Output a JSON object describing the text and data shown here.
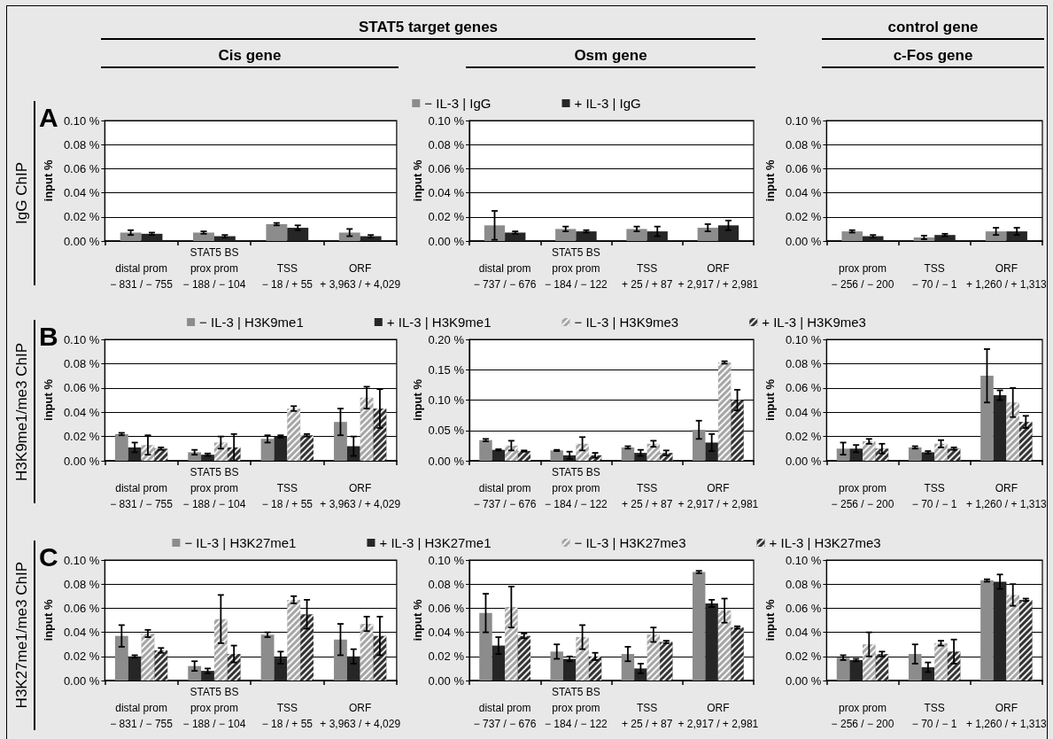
{
  "chart_data": [
    {
      "type": "bar",
      "title": "Cis gene",
      "annotations": [
        "STAT5  target  genes",
        "A",
        "IgG ChIP"
      ],
      "ylabel": "input %",
      "categories": [
        "distal prom\n− 831 / − 755",
        "STAT5 BS\nprox prom\n− 188 / − 104",
        "TSS\n− 18 / + 55",
        "ORF\n+ 3,963 / + 4,029"
      ],
      "ylim": [
        0,
        0.1
      ],
      "yticks": [
        {
          "value": 0,
          "label": "0.00 %"
        },
        {
          "value": 0.02,
          "label": "0.02 %"
        },
        {
          "value": 0.04,
          "label": "0.04 %"
        },
        {
          "value": 0.06,
          "label": "0.06 %"
        },
        {
          "value": 0.08,
          "label": "0.08 %"
        },
        {
          "value": 0.1,
          "label": "0.10 %"
        }
      ],
      "grid": "y",
      "series": [
        {
          "color": "#8c8c8c",
          "values": [
            0.007,
            0.007,
            0.014,
            0.007
          ],
          "errors": [
            0.002,
            0.001,
            0.001,
            0.003
          ]
        },
        {
          "color": "#262626",
          "values": [
            0.006,
            0.004,
            0.011,
            0.004
          ],
          "errors": [
            0.001,
            0.001,
            0.002,
            0.001
          ]
        }
      ]
    },
    {
      "type": "bar",
      "title": "Osm gene",
      "ylabel": "input %",
      "legend": "top",
      "categories": [
        "distal prom\n− 737 / − 676",
        "STAT5 BS\nprox prom\n− 184 / − 122",
        "TSS\n+ 25 / + 87",
        "ORF\n+ 2,917 / + 2,981"
      ],
      "ylim": [
        0,
        0.1
      ],
      "yticks": [
        {
          "value": 0,
          "label": "0.00 %"
        },
        {
          "value": 0.02,
          "label": "0.02 %"
        },
        {
          "value": 0.04,
          "label": "0.04 %"
        },
        {
          "value": 0.06,
          "label": "0.06 %"
        },
        {
          "value": 0.08,
          "label": "0.08 %"
        },
        {
          "value": 0.1,
          "label": "0.10 %"
        }
      ],
      "grid": "y",
      "series": [
        {
          "name": "− IL-3 | IgG",
          "color": "#8c8c8c",
          "values": [
            0.013,
            0.01,
            0.01,
            0.011
          ],
          "errors": [
            0.012,
            0.002,
            0.002,
            0.003
          ]
        },
        {
          "name": "+ IL-3 | IgG",
          "color": "#262626",
          "values": [
            0.007,
            0.008,
            0.008,
            0.013
          ],
          "errors": [
            0.001,
            0.001,
            0.004,
            0.004
          ]
        }
      ]
    },
    {
      "type": "bar",
      "title": "c-Fos gene",
      "annotations": [
        "control  gene"
      ],
      "ylabel": "input %",
      "categories": [
        "prox prom\n− 256 / − 200",
        "TSS\n− 70 / − 1",
        "ORF\n+ 1,260 / + 1,313"
      ],
      "ylim": [
        0,
        0.1
      ],
      "yticks": [
        {
          "value": 0,
          "label": "0.00 %"
        },
        {
          "value": 0.02,
          "label": "0.02 %"
        },
        {
          "value": 0.04,
          "label": "0.04 %"
        },
        {
          "value": 0.06,
          "label": "0.06 %"
        },
        {
          "value": 0.08,
          "label": "0.08 %"
        },
        {
          "value": 0.1,
          "label": "0.10 %"
        }
      ],
      "grid": "y",
      "series": [
        {
          "color": "#8c8c8c",
          "values": [
            0.008,
            0.003,
            0.008
          ],
          "errors": [
            0.001,
            0.0015,
            0.003
          ]
        },
        {
          "color": "#262626",
          "values": [
            0.004,
            0.005,
            0.008
          ],
          "errors": [
            0.001,
            0.001,
            0.003
          ]
        }
      ]
    },
    {
      "type": "bar",
      "annotations": [
        "B",
        "H3K9me1/me3 ChIP"
      ],
      "ylabel": "input %",
      "categories": [
        "distal prom\n− 831 / − 755",
        "STAT5 BS\nprox prom\n− 188 / − 104",
        "TSS\n− 18 / + 55",
        "ORF\n+ 3,963 / + 4,029"
      ],
      "ylim": [
        0,
        0.1
      ],
      "yticks": [
        {
          "value": 0,
          "label": "0.00 %"
        },
        {
          "value": 0.02,
          "label": "0.02 %"
        },
        {
          "value": 0.04,
          "label": "0.04 %"
        },
        {
          "value": 0.06,
          "label": "0.06 %"
        },
        {
          "value": 0.08,
          "label": "0.08 %"
        },
        {
          "value": 0.1,
          "label": "0.10 %"
        }
      ],
      "grid": "y",
      "series": [
        {
          "color": "#8c8c8c",
          "values": [
            0.022,
            0.007,
            0.018,
            0.032
          ],
          "errors": [
            0.001,
            0.002,
            0.003,
            0.011
          ]
        },
        {
          "color": "#262626",
          "values": [
            0.011,
            0.005,
            0.02,
            0.012
          ],
          "errors": [
            0.004,
            0.001,
            0.001,
            0.008
          ]
        },
        {
          "color": "#a6a6a6",
          "values": [
            0.013,
            0.015,
            0.043,
            0.052
          ],
          "errors": [
            0.008,
            0.005,
            0.002,
            0.009
          ]
        },
        {
          "color": "#333333",
          "values": [
            0.01,
            0.011,
            0.021,
            0.043
          ],
          "errors": [
            0.001,
            0.011,
            0.001,
            0.016
          ]
        }
      ]
    },
    {
      "type": "bar",
      "ylabel": "input %",
      "legend": "top",
      "categories": [
        "distal prom\n− 737 / − 676",
        "STAT5 BS\nprox prom\n− 184 / − 122",
        "TSS\n+ 25 / + 87",
        "ORF\n+ 2,917 / + 2,981"
      ],
      "ylim": [
        0,
        0.2
      ],
      "yticks": [
        {
          "value": 0,
          "label": "0.00 %"
        },
        {
          "value": 0.05,
          "label": "0.05 %"
        },
        {
          "value": 0.1,
          "label": "0.10 %"
        },
        {
          "value": 0.15,
          "label": "0.15 %"
        },
        {
          "value": 0.2,
          "label": "0.20 %"
        }
      ],
      "grid": "y",
      "series": [
        {
          "name": "− IL-3 | H3K9me1",
          "color": "#8c8c8c",
          "values": [
            0.034,
            0.017,
            0.022,
            0.051
          ],
          "errors": [
            0.002,
            0.001,
            0.002,
            0.015
          ]
        },
        {
          "name": "+ IL-3 | H3K9me1",
          "color": "#262626",
          "values": [
            0.018,
            0.009,
            0.013,
            0.03
          ],
          "errors": [
            0.001,
            0.006,
            0.005,
            0.014
          ]
        },
        {
          "name": "− IL-3 | H3K9me3",
          "color": "#a6a6a6",
          "values": [
            0.025,
            0.028,
            0.028,
            0.162
          ],
          "errors": [
            0.008,
            0.011,
            0.005,
            0.002
          ]
        },
        {
          "name": "+ IL-3 | H3K9me3",
          "color": "#333333",
          "values": [
            0.016,
            0.009,
            0.013,
            0.1
          ],
          "errors": [
            0.001,
            0.004,
            0.004,
            0.017
          ]
        }
      ]
    },
    {
      "type": "bar",
      "ylabel": "input %",
      "categories": [
        "prox prom\n− 256 / − 200",
        "TSS\n− 70 / − 1",
        "ORF\n+ 1,260 / + 1,313"
      ],
      "ylim": [
        0,
        0.1
      ],
      "yticks": [
        {
          "value": 0,
          "label": "0.00 %"
        },
        {
          "value": 0.02,
          "label": "0.02 %"
        },
        {
          "value": 0.04,
          "label": "0.04 %"
        },
        {
          "value": 0.06,
          "label": "0.06 %"
        },
        {
          "value": 0.08,
          "label": "0.08 %"
        },
        {
          "value": 0.1,
          "label": "0.10 %"
        }
      ],
      "grid": "y",
      "series": [
        {
          "color": "#8c8c8c",
          "values": [
            0.01,
            0.011,
            0.07
          ],
          "errors": [
            0.005,
            0.001,
            0.022
          ]
        },
        {
          "color": "#262626",
          "values": [
            0.01,
            0.007,
            0.054
          ],
          "errors": [
            0.003,
            0.001,
            0.004
          ]
        },
        {
          "color": "#a6a6a6",
          "values": [
            0.016,
            0.014,
            0.048
          ],
          "errors": [
            0.002,
            0.003,
            0.012
          ]
        },
        {
          "color": "#333333",
          "values": [
            0.01,
            0.01,
            0.032
          ],
          "errors": [
            0.004,
            0.001,
            0.005
          ]
        }
      ]
    },
    {
      "type": "bar",
      "annotations": [
        "C",
        "H3K27me1/me3 ChIP"
      ],
      "ylabel": "input %",
      "categories": [
        "distal prom\n− 831 / − 755",
        "STAT5 BS\nprox prom\n− 188 / − 104",
        "TSS\n− 18 / + 55",
        "ORF\n+ 3,963 / + 4,029"
      ],
      "ylim": [
        0,
        0.1
      ],
      "yticks": [
        {
          "value": 0,
          "label": "0.00 %"
        },
        {
          "value": 0.02,
          "label": "0.02 %"
        },
        {
          "value": 0.04,
          "label": "0.04 %"
        },
        {
          "value": 0.06,
          "label": "0.06 %"
        },
        {
          "value": 0.08,
          "label": "0.08 %"
        },
        {
          "value": 0.1,
          "label": "0.10 %"
        }
      ],
      "grid": "y",
      "series": [
        {
          "color": "#8c8c8c",
          "values": [
            0.037,
            0.012,
            0.038,
            0.034
          ],
          "errors": [
            0.009,
            0.004,
            0.002,
            0.013
          ]
        },
        {
          "color": "#262626",
          "values": [
            0.02,
            0.008,
            0.019,
            0.02
          ],
          "errors": [
            0.001,
            0.002,
            0.005,
            0.006
          ]
        },
        {
          "color": "#a6a6a6",
          "values": [
            0.039,
            0.051,
            0.067,
            0.047
          ],
          "errors": [
            0.003,
            0.02,
            0.003,
            0.006
          ]
        },
        {
          "color": "#333333",
          "values": [
            0.025,
            0.022,
            0.055,
            0.037
          ],
          "errors": [
            0.002,
            0.007,
            0.012,
            0.016
          ]
        }
      ]
    },
    {
      "type": "bar",
      "ylabel": "input %",
      "legend": "top",
      "categories": [
        "distal prom\n− 737 / − 676",
        "STAT5 BS\nprox prom\n− 184 / − 122",
        "TSS\n+ 25 / + 87",
        "ORF\n+ 2,917 / + 2,981"
      ],
      "ylim": [
        0,
        0.1
      ],
      "yticks": [
        {
          "value": 0,
          "label": "0.00 %"
        },
        {
          "value": 0.02,
          "label": "0.02 %"
        },
        {
          "value": 0.04,
          "label": "0.04 %"
        },
        {
          "value": 0.06,
          "label": "0.06 %"
        },
        {
          "value": 0.08,
          "label": "0.08 %"
        },
        {
          "value": 0.1,
          "label": "0.10 %"
        }
      ],
      "grid": "y",
      "series": [
        {
          "name": "− IL-3 | H3K27me1",
          "color": "#8c8c8c",
          "values": [
            0.056,
            0.024,
            0.022,
            0.09
          ],
          "errors": [
            0.016,
            0.006,
            0.006,
            0.001
          ]
        },
        {
          "name": "+ IL-3 | H3K27me1",
          "color": "#262626",
          "values": [
            0.029,
            0.018,
            0.01,
            0.064
          ],
          "errors": [
            0.007,
            0.002,
            0.004,
            0.003
          ]
        },
        {
          "name": "− IL-3 | H3K27me3",
          "color": "#a6a6a6",
          "values": [
            0.061,
            0.036,
            0.038,
            0.058
          ],
          "errors": [
            0.017,
            0.01,
            0.006,
            0.01
          ]
        },
        {
          "name": "+ IL-3 | H3K27me3",
          "color": "#333333",
          "values": [
            0.037,
            0.02,
            0.032,
            0.044
          ],
          "errors": [
            0.002,
            0.003,
            0.001,
            0.001
          ]
        }
      ]
    },
    {
      "type": "bar",
      "ylabel": "input %",
      "categories": [
        "prox prom\n− 256 / − 200",
        "TSS\n− 70 / − 1",
        "ORF\n+ 1,260 / + 1,313"
      ],
      "ylim": [
        0,
        0.1
      ],
      "yticks": [
        {
          "value": 0,
          "label": "0.00 %"
        },
        {
          "value": 0.02,
          "label": "0.02 %"
        },
        {
          "value": 0.04,
          "label": "0.04 %"
        },
        {
          "value": 0.06,
          "label": "0.06 %"
        },
        {
          "value": 0.08,
          "label": "0.08 %"
        },
        {
          "value": 0.1,
          "label": "0.10 %"
        }
      ],
      "grid": "y",
      "series": [
        {
          "color": "#8c8c8c",
          "values": [
            0.019,
            0.022,
            0.083
          ],
          "errors": [
            0.002,
            0.008,
            0.001
          ]
        },
        {
          "color": "#262626",
          "values": [
            0.017,
            0.011,
            0.082
          ],
          "errors": [
            0.001,
            0.004,
            0.006
          ]
        },
        {
          "color": "#a6a6a6",
          "values": [
            0.03,
            0.031,
            0.071
          ],
          "errors": [
            0.01,
            0.002,
            0.009
          ]
        },
        {
          "color": "#333333",
          "values": [
            0.022,
            0.024,
            0.067
          ],
          "errors": [
            0.002,
            0.01,
            0.001
          ]
        }
      ]
    }
  ]
}
